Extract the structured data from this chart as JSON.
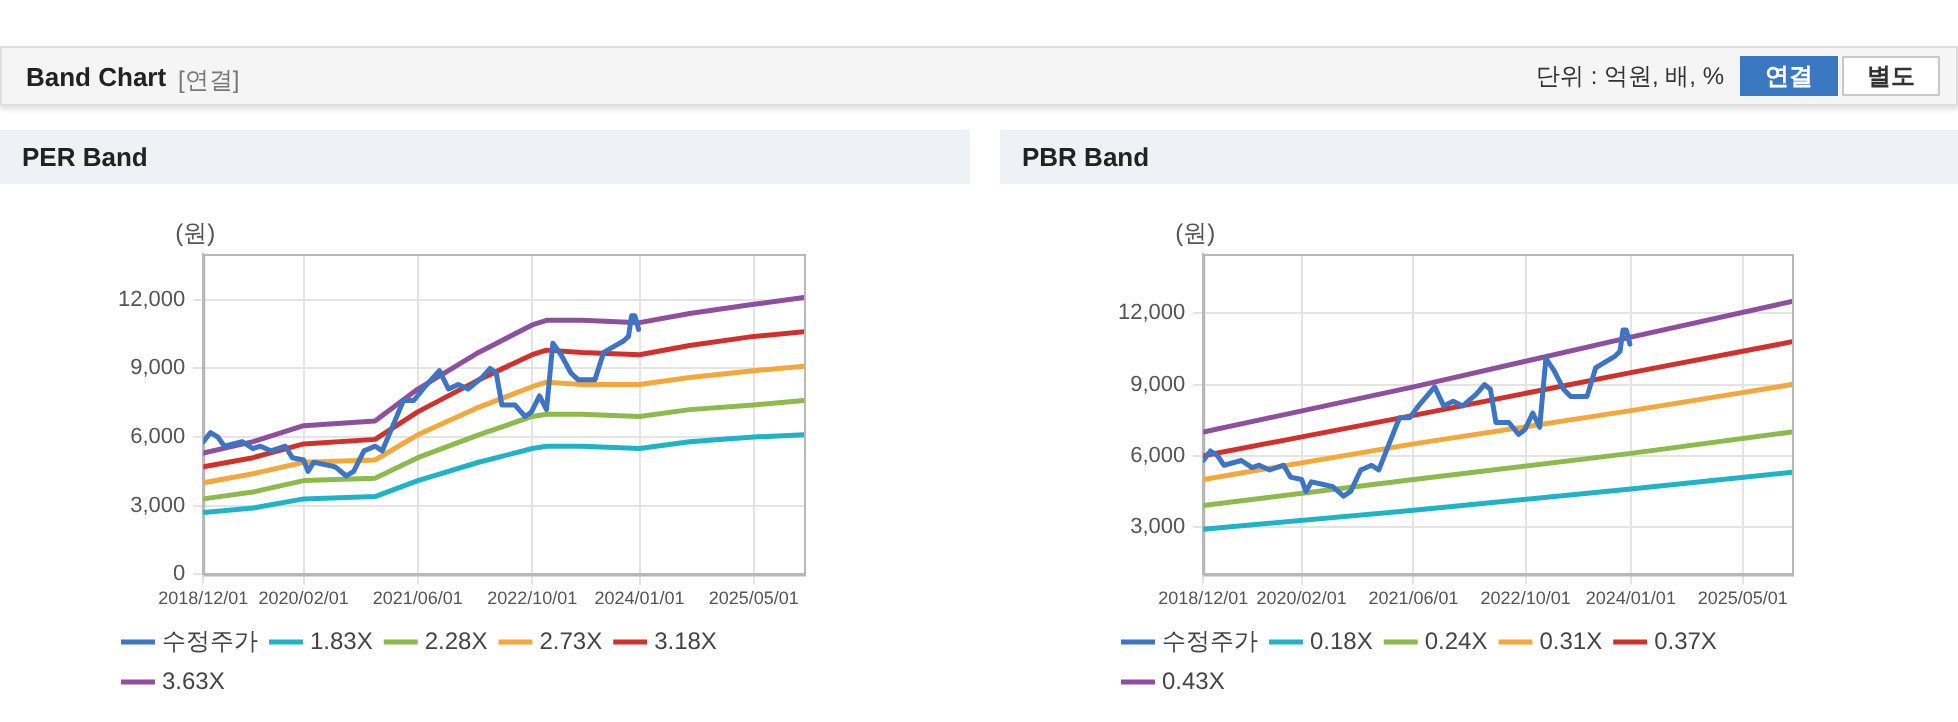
{
  "chart_data": [
    {
      "type": "other",
      "title": "Band Chart",
      "annotations": [
        "[연결]",
        "단위 : 억원, 배, %",
        "연결",
        "별도"
      ]
    },
    {
      "type": "line",
      "title": "PER Band",
      "ylabel": "(원)",
      "xlim": [
        "2018-12-01",
        "2025-12-01"
      ],
      "xticks": [
        {
          "value": "2018-12-01",
          "label": "2018/12/01"
        },
        {
          "value": "2020-02-01",
          "label": "2020/02/01"
        },
        {
          "value": "2021-06-01",
          "label": "2021/06/01"
        },
        {
          "value": "2022-10-01",
          "label": "2022/10/01"
        },
        {
          "value": "2024-01-01",
          "label": "2024/01/01"
        },
        {
          "value": "2025-05-01",
          "label": "2025/05/01"
        }
      ],
      "ylim": [
        0,
        14000
      ],
      "yticks": [
        0,
        {
          "value": 3000,
          "label": "3,000"
        },
        {
          "value": 6000,
          "label": "6,000"
        },
        {
          "value": 9000,
          "label": "9,000"
        },
        {
          "value": 12000,
          "label": "12,000"
        }
      ],
      "grid": true,
      "legend": "bottom",
      "marker": "none",
      "line_style": "solid",
      "series": [
        {
          "name": "수정주가",
          "color": "#3d74c3",
          "x": [
            "2018-12-01",
            "2019-01-01",
            "2019-02-01",
            "2019-03-01",
            "2019-05-15",
            "2019-07-01",
            "2019-08-01",
            "2019-09-15",
            "2019-11-15",
            "2019-12-15",
            "2020-02-01",
            "2020-02-20",
            "2020-03-15",
            "2020-05-01",
            "2020-06-15",
            "2020-08-01",
            "2020-09-01",
            "2020-10-15",
            "2020-12-01",
            "2021-01-01",
            "2021-02-15",
            "2021-04-01",
            "2021-05-15",
            "2021-07-01",
            "2021-09-01",
            "2021-10-10",
            "2021-11-20",
            "2022-01-01",
            "2022-03-01",
            "2022-04-05",
            "2022-05-01",
            "2022-05-25",
            "2022-07-20",
            "2022-09-01",
            "2022-09-28",
            "2022-11-01",
            "2022-12-01",
            "2022-12-28",
            "2023-02-01",
            "2023-03-15",
            "2023-04-15",
            "2023-06-25",
            "2023-08-01",
            "2023-09-20",
            "2023-10-25",
            "2023-11-15",
            "2023-11-28",
            "2023-12-12",
            "2023-12-28"
          ],
          "values": [
            5800,
            6200,
            6000,
            5600,
            5800,
            5500,
            5600,
            5400,
            5600,
            5100,
            5000,
            4500,
            4900,
            4800,
            4700,
            4300,
            4500,
            5400,
            5600,
            5400,
            6500,
            7600,
            7600,
            8200,
            8900,
            8100,
            8300,
            8100,
            8600,
            9000,
            8800,
            7400,
            7400,
            6900,
            7100,
            7800,
            7200,
            10100,
            9600,
            8800,
            8500,
            8500,
            9700,
            10000,
            10200,
            10400,
            11300,
            11300,
            10700
          ]
        },
        {
          "name": "1.83X",
          "color": "#1fb3c6",
          "x": [
            "2018-12-01",
            "2019-07-01",
            "2020-02-01",
            "2020-12-01",
            "2021-06-01",
            "2022-02-15",
            "2022-10-01",
            "2022-12-01",
            "2023-05-01",
            "2024-01-01",
            "2024-08-01",
            "2025-05-01",
            "2025-12-01"
          ],
          "values": [
            2700,
            2900,
            3300,
            3400,
            4100,
            4900,
            5500,
            5600,
            5600,
            5500,
            5800,
            6000,
            6100
          ]
        },
        {
          "name": "2.28X",
          "color": "#8db94d",
          "x": [
            "2018-12-01",
            "2019-07-01",
            "2020-02-01",
            "2020-12-01",
            "2021-06-01",
            "2022-02-15",
            "2022-10-01",
            "2022-12-01",
            "2023-05-01",
            "2024-01-01",
            "2024-08-01",
            "2025-05-01",
            "2025-12-01"
          ],
          "values": [
            3300,
            3600,
            4100,
            4200,
            5100,
            6100,
            6900,
            7000,
            7000,
            6900,
            7200,
            7400,
            7600
          ]
        },
        {
          "name": "2.73X",
          "color": "#f4a73b",
          "x": [
            "2018-12-01",
            "2019-07-01",
            "2020-02-01",
            "2020-12-01",
            "2021-06-01",
            "2022-02-15",
            "2022-10-01",
            "2022-12-01",
            "2023-05-01",
            "2024-01-01",
            "2024-08-01",
            "2025-05-01",
            "2025-12-01"
          ],
          "values": [
            4000,
            4400,
            4900,
            5000,
            6100,
            7300,
            8200,
            8400,
            8300,
            8300,
            8600,
            8900,
            9100
          ]
        },
        {
          "name": "3.18X",
          "color": "#d0312d",
          "x": [
            "2018-12-01",
            "2019-07-01",
            "2020-02-01",
            "2020-12-01",
            "2021-06-01",
            "2022-02-15",
            "2022-10-01",
            "2022-12-01",
            "2023-05-01",
            "2024-01-01",
            "2024-08-01",
            "2025-05-01",
            "2025-12-01"
          ],
          "values": [
            4700,
            5100,
            5700,
            5900,
            7100,
            8500,
            9600,
            9800,
            9700,
            9600,
            10000,
            10400,
            10600
          ]
        },
        {
          "name": "3.63X",
          "color": "#8f4f9f",
          "x": [
            "2018-12-01",
            "2019-07-01",
            "2020-02-01",
            "2020-12-01",
            "2021-06-01",
            "2022-02-15",
            "2022-10-01",
            "2022-12-01",
            "2023-05-01",
            "2024-01-01",
            "2024-08-01",
            "2025-05-01",
            "2025-12-01"
          ],
          "values": [
            5300,
            5800,
            6500,
            6700,
            8100,
            9700,
            10900,
            11100,
            11100,
            11000,
            11400,
            11800,
            12100
          ]
        }
      ]
    },
    {
      "type": "line",
      "title": "PBR Band",
      "ylabel": "(원)",
      "xlim": [
        "2018-12-01",
        "2025-12-01"
      ],
      "xticks": [
        {
          "value": "2018-12-01",
          "label": "2018/12/01"
        },
        {
          "value": "2020-02-01",
          "label": "2020/02/01"
        },
        {
          "value": "2021-06-01",
          "label": "2021/06/01"
        },
        {
          "value": "2022-10-01",
          "label": "2022/10/01"
        },
        {
          "value": "2024-01-01",
          "label": "2024/01/01"
        },
        {
          "value": "2025-05-01",
          "label": "2025/05/01"
        }
      ],
      "ylim": [
        1000,
        14500
      ],
      "yticks": [
        {
          "value": 3000,
          "label": "3,000"
        },
        {
          "value": 6000,
          "label": "6,000"
        },
        {
          "value": 9000,
          "label": "9,000"
        },
        {
          "value": 12000,
          "label": "12,000"
        }
      ],
      "grid": true,
      "legend": "bottom",
      "marker": "none",
      "line_style": "solid",
      "series": [
        {
          "name": "수정주가",
          "color": "#3d74c3",
          "x": [
            "2018-12-01",
            "2019-01-01",
            "2019-02-01",
            "2019-03-01",
            "2019-05-15",
            "2019-07-01",
            "2019-08-01",
            "2019-09-15",
            "2019-11-15",
            "2019-12-15",
            "2020-02-01",
            "2020-02-20",
            "2020-03-15",
            "2020-05-01",
            "2020-06-15",
            "2020-08-01",
            "2020-09-01",
            "2020-10-15",
            "2020-12-01",
            "2021-01-01",
            "2021-02-15",
            "2021-04-01",
            "2021-05-15",
            "2021-07-01",
            "2021-09-01",
            "2021-10-10",
            "2021-11-20",
            "2022-01-01",
            "2022-03-01",
            "2022-04-05",
            "2022-05-01",
            "2022-05-25",
            "2022-07-20",
            "2022-09-01",
            "2022-09-28",
            "2022-11-01",
            "2022-12-01",
            "2022-12-28",
            "2023-02-01",
            "2023-03-15",
            "2023-04-15",
            "2023-06-25",
            "2023-08-01",
            "2023-09-20",
            "2023-10-25",
            "2023-11-15",
            "2023-11-28",
            "2023-12-12",
            "2023-12-28"
          ],
          "values": [
            5800,
            6200,
            6000,
            5600,
            5800,
            5500,
            5600,
            5400,
            5600,
            5100,
            5000,
            4500,
            4900,
            4800,
            4700,
            4300,
            4500,
            5400,
            5600,
            5400,
            6500,
            7600,
            7600,
            8200,
            8900,
            8100,
            8300,
            8100,
            8600,
            9000,
            8800,
            7400,
            7400,
            6900,
            7100,
            7800,
            7200,
            10100,
            9600,
            8800,
            8500,
            8500,
            9700,
            10000,
            10200,
            10400,
            11300,
            11300,
            10700
          ]
        },
        {
          "name": "0.18X",
          "color": "#1fb3c6",
          "x": [
            "2018-12-01",
            "2021-06-01",
            "2024-01-01",
            "2025-12-01"
          ],
          "values": [
            2900,
            3700,
            4600,
            5300
          ]
        },
        {
          "name": "0.24X",
          "color": "#8db94d",
          "x": [
            "2018-12-01",
            "2021-06-01",
            "2024-01-01",
            "2025-12-01"
          ],
          "values": [
            3900,
            5000,
            6100,
            7000
          ]
        },
        {
          "name": "0.31X",
          "color": "#f4a73b",
          "x": [
            "2018-12-01",
            "2021-06-01",
            "2024-01-01",
            "2025-12-01"
          ],
          "values": [
            5000,
            6500,
            7900,
            9000
          ]
        },
        {
          "name": "0.37X",
          "color": "#d0312d",
          "x": [
            "2018-12-01",
            "2021-06-01",
            "2024-01-01",
            "2025-12-01"
          ],
          "values": [
            6000,
            7700,
            9500,
            10800
          ]
        },
        {
          "name": "0.43X",
          "color": "#8f4f9f",
          "x": [
            "2018-12-01",
            "2021-06-01",
            "2024-01-01",
            "2025-12-01"
          ],
          "values": [
            7000,
            8900,
            11000,
            12500
          ]
        }
      ]
    }
  ]
}
